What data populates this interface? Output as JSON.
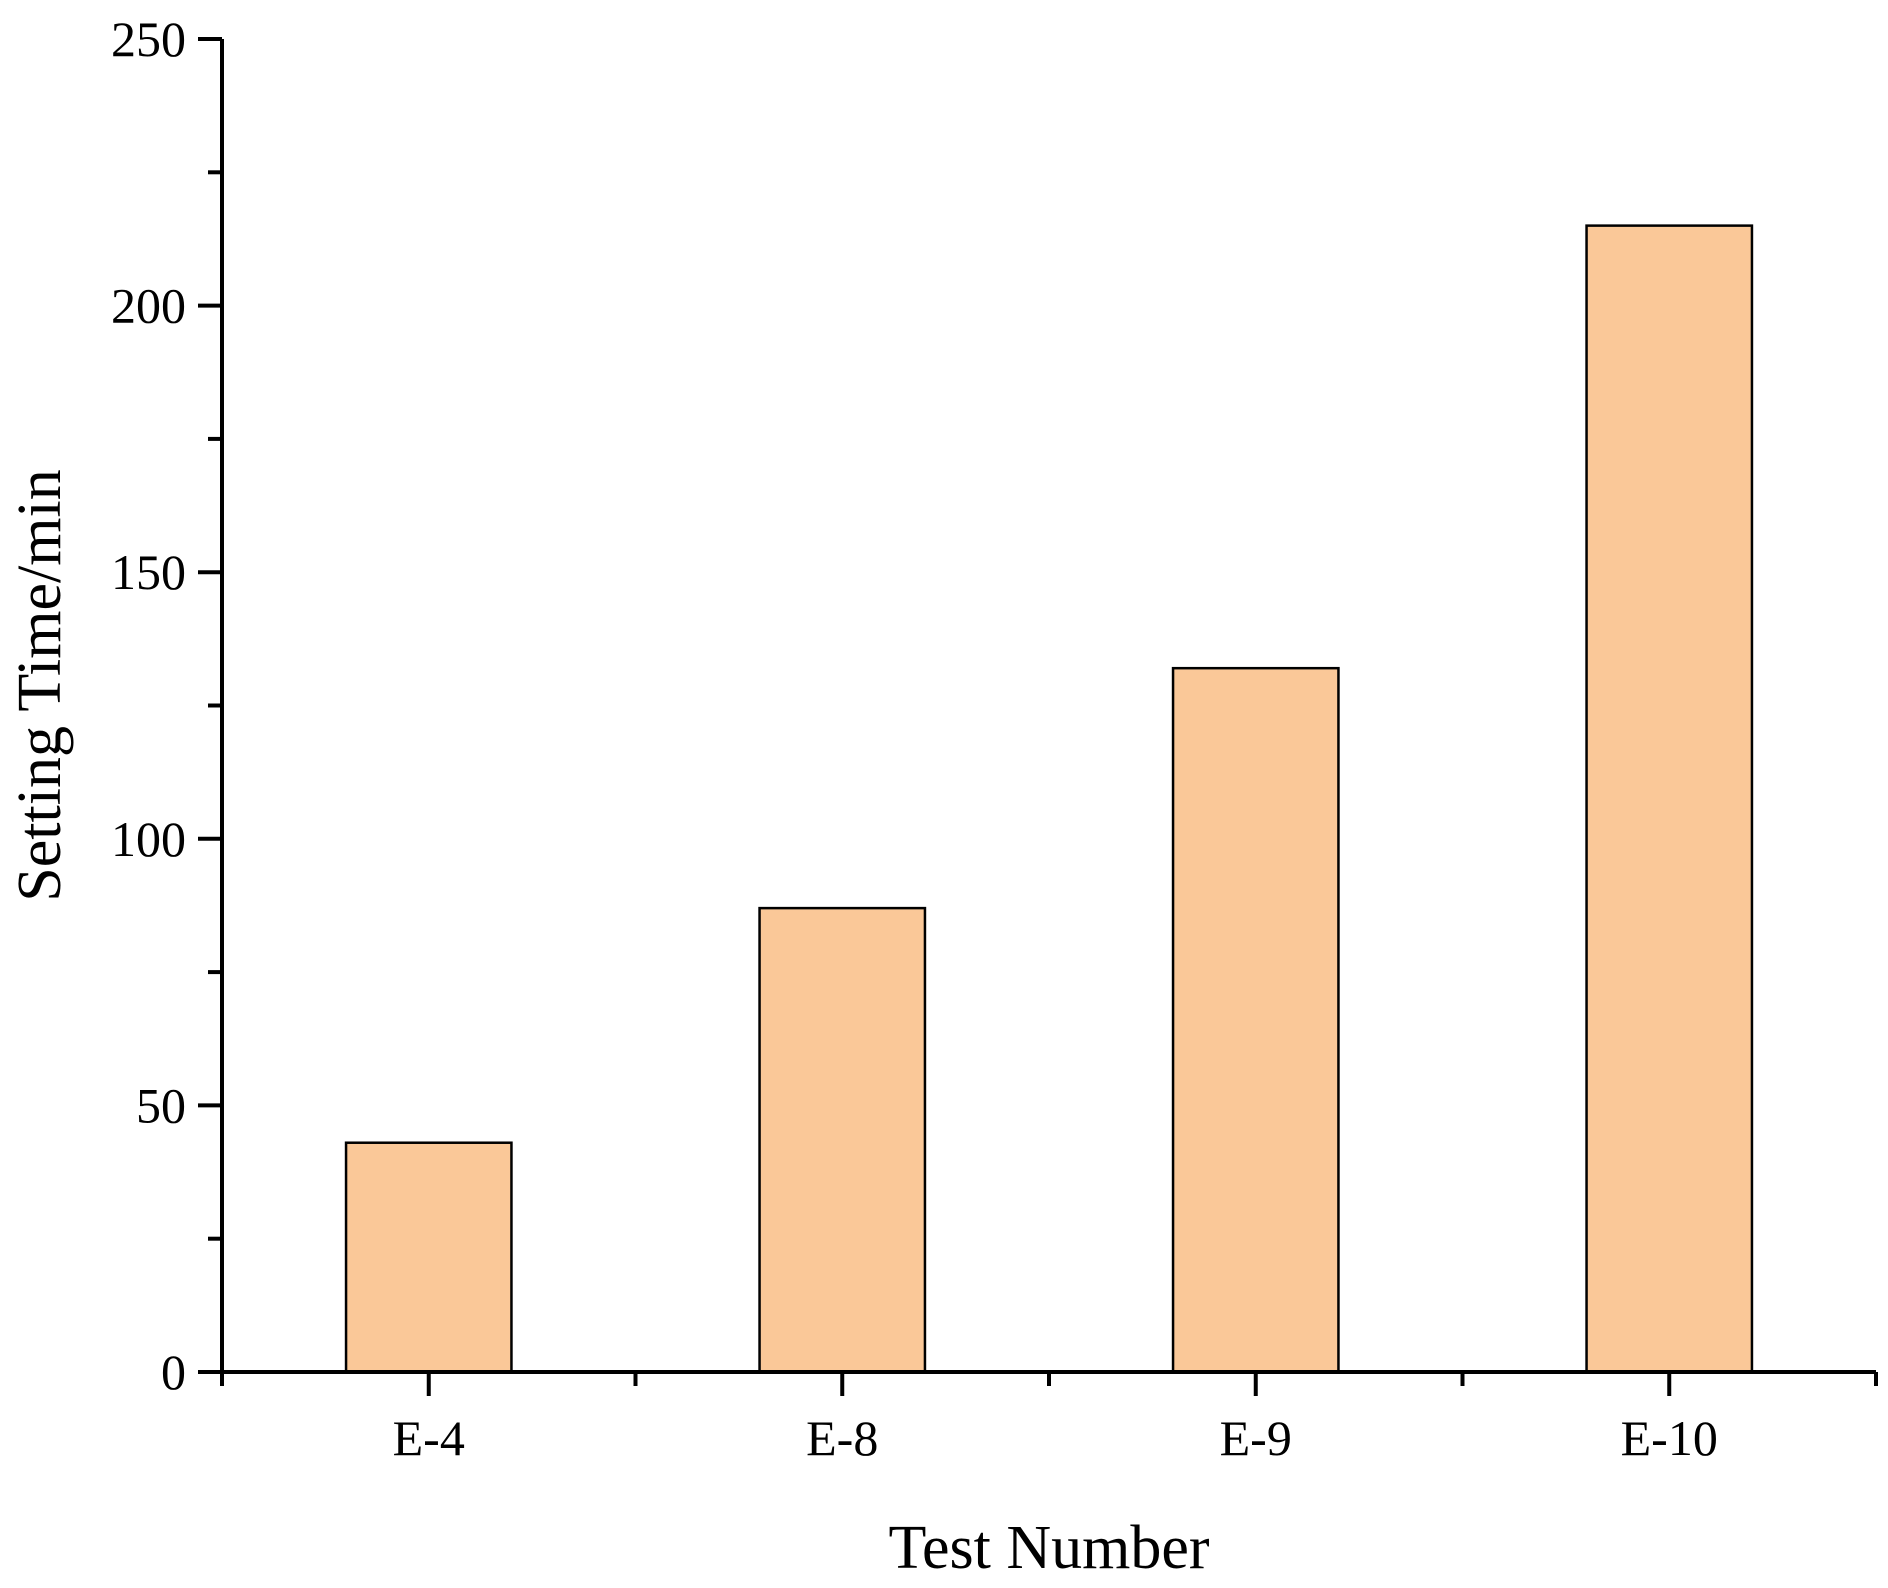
{
  "chart_data": {
    "type": "bar",
    "categories": [
      "E-4",
      "E-8",
      "E-9",
      "E-10"
    ],
    "series": [
      {
        "values": [
          43,
          87,
          132,
          215
        ]
      }
    ],
    "xlabel": "Test Number",
    "ylabel": "Setting Time/min",
    "ylim": [
      0,
      250
    ],
    "yticks": [
      0,
      50,
      100,
      150,
      200,
      250
    ],
    "yticks_minor": [
      25,
      75,
      125,
      175,
      225
    ],
    "bar_color": "#FAC898",
    "bar_edge_color": "#000000",
    "grid": false,
    "legend": "none"
  }
}
